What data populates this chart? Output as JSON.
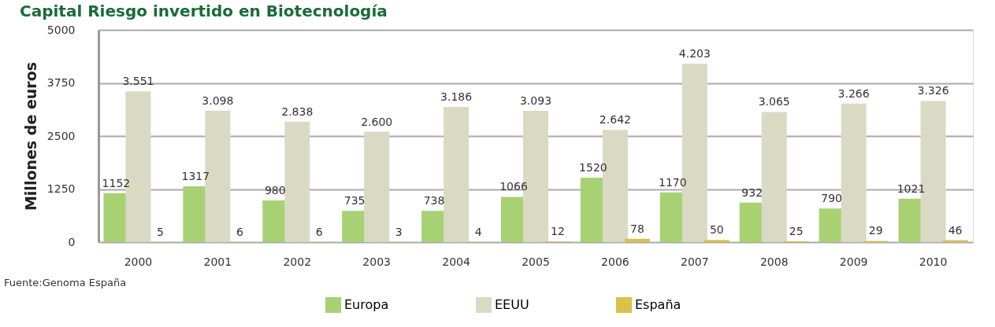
{
  "chart_data": {
    "type": "bar",
    "title": "Capital Riesgo invertido en Biotecnología",
    "ylabel": "Millones de euros",
    "categories": [
      "2000",
      "2001",
      "2002",
      "2003",
      "2004",
      "2005",
      "2006",
      "2007",
      "2008",
      "2009",
      "2010"
    ],
    "series": [
      {
        "name": "Europa",
        "color": "#a8d174",
        "values": [
          1152,
          1317,
          980,
          735,
          738,
          1066,
          1520,
          1170,
          932,
          790,
          1021
        ],
        "value_labels": [
          "1152",
          "1317",
          "980",
          "735",
          "738",
          "1066",
          "1520",
          "1170",
          "932",
          "790",
          "1021"
        ]
      },
      {
        "name": "EEUU",
        "color": "#dadac4",
        "values": [
          3551,
          3098,
          2838,
          2600,
          3186,
          3093,
          2642,
          4203,
          3065,
          3266,
          3326
        ],
        "value_labels": [
          "3.551",
          "3.098",
          "2.838",
          "2.600",
          "3.186",
          "3.093",
          "2.642",
          "4.203",
          "3.065",
          "3.266",
          "3.326"
        ]
      },
      {
        "name": "España",
        "color": "#d9c24a",
        "values": [
          5,
          6,
          6,
          3,
          4,
          12,
          78,
          50,
          25,
          29,
          46
        ],
        "value_labels": [
          "5",
          "6",
          "6",
          "3",
          "4",
          "12",
          "78",
          "50",
          "25",
          "29",
          "46"
        ]
      }
    ],
    "ylim": [
      0,
      5000
    ],
    "yticks": [
      0,
      1250,
      2500,
      3750,
      5000
    ],
    "grid": "y",
    "legend": "bottom",
    "annotations": [
      "Fuente:Genoma España"
    ]
  }
}
